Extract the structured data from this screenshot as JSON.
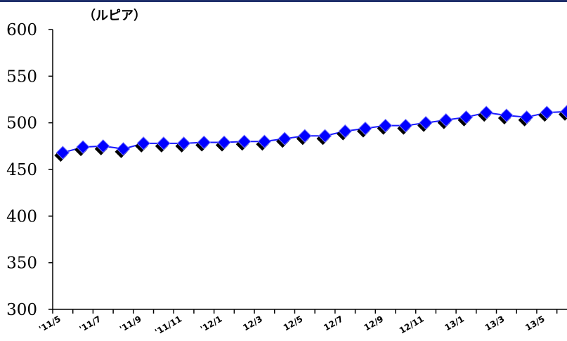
{
  "chart_data": {
    "type": "line",
    "title": "",
    "unit_label": "（ルピア）",
    "xlabel": "",
    "ylabel": "",
    "ylim": [
      300,
      600
    ],
    "yticks": [
      300,
      350,
      400,
      450,
      500,
      550,
      600
    ],
    "grid": false,
    "legend": "none",
    "x": [
      "'11/5",
      "'11/6",
      "'11/7",
      "'11/8",
      "'11/9",
      "'11/10",
      "'11/11",
      "'11/12",
      "'12/1",
      "'12/2",
      "'12/3",
      "'12/4",
      "'12/5",
      "'12/6",
      "'12/7",
      "'12/8",
      "'12/9",
      "'12/10",
      "'12/11",
      "'12/12",
      "'13/1",
      "'13/2",
      "'13/3",
      "'13/4",
      "'13/5",
      "'13/6"
    ],
    "tick_labels": [
      "'11/5",
      "'11/7",
      "'11/9",
      "'11/11",
      "'12/1",
      "12/3",
      "12/5",
      "12/7",
      "12/9",
      "12/11",
      "13/1",
      "13/3",
      "13/5"
    ],
    "series": [
      {
        "values": [
          468,
          474,
          475,
          472,
          478,
          478,
          478,
          479,
          479,
          480,
          480,
          483,
          486,
          486,
          491,
          494,
          497,
          497,
          500,
          503,
          506,
          511,
          508,
          506,
          511,
          512
        ],
        "color": "#1a1aff"
      }
    ],
    "colors": {
      "line": "#1a1aff",
      "marker": "#0000ff",
      "shadow": "#000000",
      "axis": "#000000"
    }
  }
}
